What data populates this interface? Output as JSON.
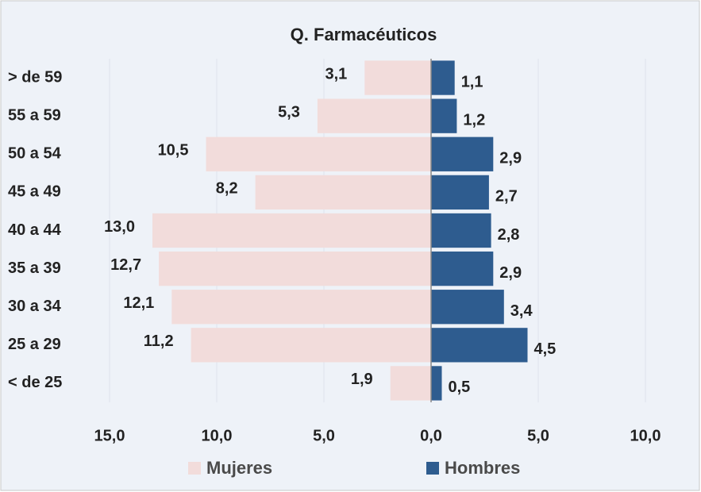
{
  "chart_data": {
    "type": "pyramid",
    "title": "Q. Farmacéuticos",
    "categories": [
      "> de 59",
      "55 a 59",
      "50 a 54",
      "45 a 49",
      "40 a 44",
      "35 a 39",
      "30 a 34",
      "25 a 29",
      "< de 25"
    ],
    "series": [
      {
        "name": "Mujeres",
        "color": "#f2dcdb",
        "side": "left",
        "values": [
          3.1,
          5.3,
          10.5,
          8.2,
          13.0,
          12.7,
          12.1,
          11.2,
          1.9
        ],
        "value_labels": [
          "3,1",
          "5,3",
          "10,5",
          "8,2",
          "13,0",
          "12,7",
          "12,1",
          "11,2",
          "1,9"
        ]
      },
      {
        "name": "Hombres",
        "color": "#2e5c8f",
        "side": "right",
        "values": [
          1.1,
          1.2,
          2.9,
          2.7,
          2.8,
          2.9,
          3.4,
          4.5,
          0.5
        ],
        "value_labels": [
          "1,1",
          "1,2",
          "2,9",
          "2,7",
          "2,8",
          "2,9",
          "3,4",
          "4,5",
          "0,5"
        ]
      }
    ],
    "xlim": [
      -16,
      12
    ],
    "xticks": [
      {
        "value": -15,
        "label": "15,0"
      },
      {
        "value": -10,
        "label": "10,0"
      },
      {
        "value": -5,
        "label": "5,0"
      },
      {
        "value": 0,
        "label": "0,0"
      },
      {
        "value": 5,
        "label": "5,0"
      },
      {
        "value": 10,
        "label": "10,0"
      }
    ],
    "grid": true
  }
}
